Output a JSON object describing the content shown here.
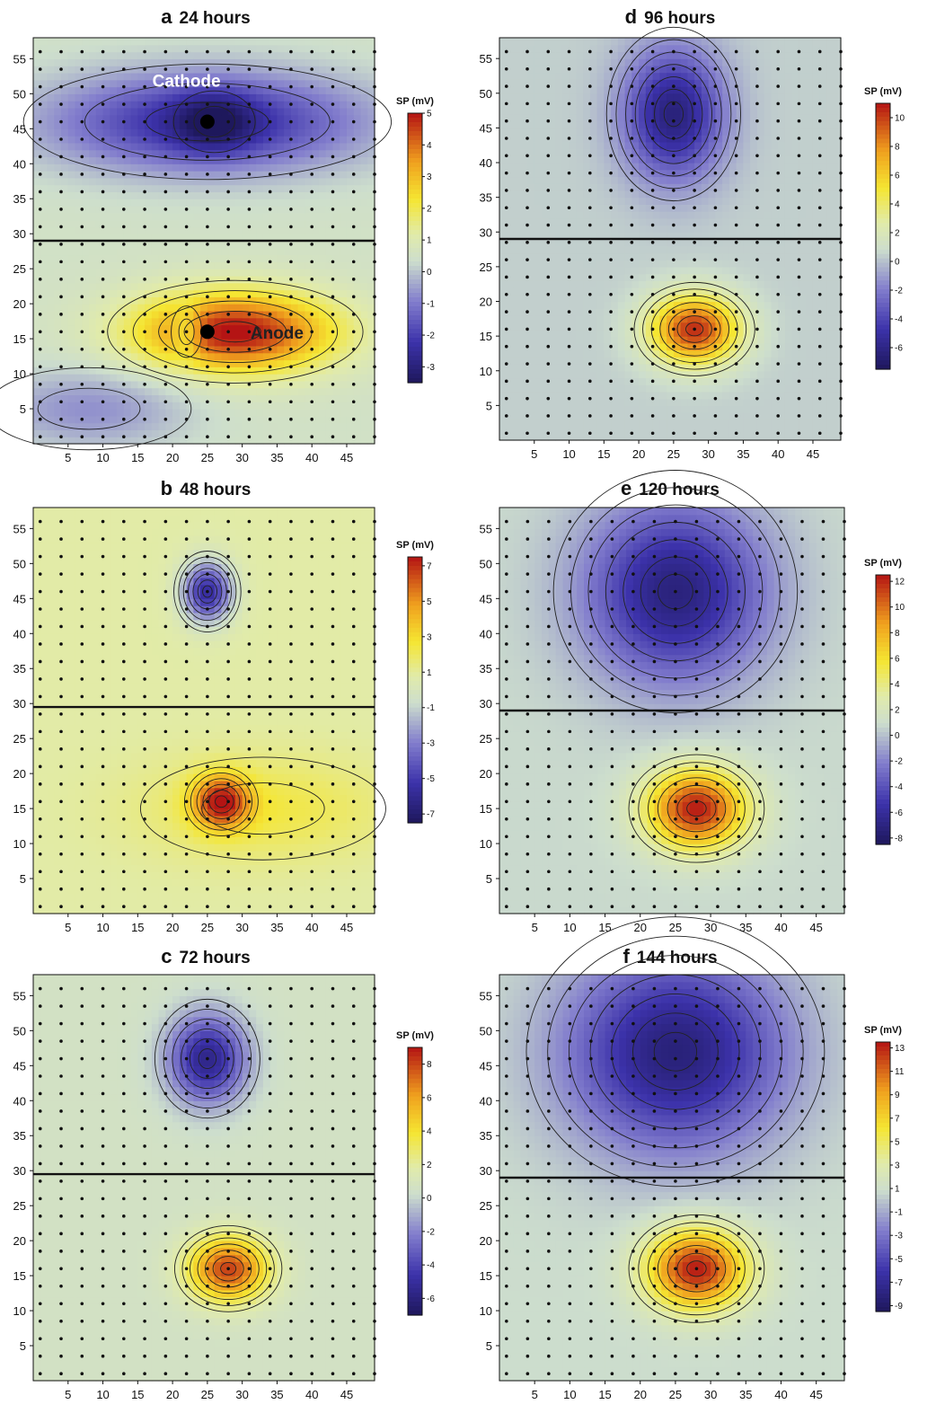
{
  "chart_data": [
    {
      "type": "heatmap",
      "letter": "a",
      "title": "24 hours",
      "colorbar_title": "SP (mV)",
      "colorbar_ticks": [
        5,
        4,
        3,
        2,
        1,
        0,
        -1,
        -2,
        -3
      ],
      "zlim": [
        -3.5,
        5
      ],
      "xlim": [
        0,
        49
      ],
      "ylim": [
        0,
        58
      ],
      "x_ticks": [
        5,
        10,
        15,
        20,
        25,
        30,
        35,
        40,
        45
      ],
      "y_ticks": [
        5,
        10,
        15,
        20,
        25,
        30,
        35,
        40,
        45,
        50,
        55
      ],
      "divider_y": 29,
      "background": 0.5,
      "anomalies": [
        {
          "x": 25,
          "y": 46,
          "amplitude": -3.0,
          "sx": 16,
          "sy": 5
        },
        {
          "x": 26,
          "y": 46,
          "amplitude": -1.5,
          "sx": 4,
          "sy": 3
        },
        {
          "x": 29,
          "y": 16,
          "amplitude": 4.6,
          "sx": 10,
          "sy": 4
        },
        {
          "x": 22,
          "y": 16,
          "amplitude": -1.5,
          "sx": 1.5,
          "sy": 2.5
        },
        {
          "x": 8,
          "y": 5,
          "amplitude": -1.2,
          "sx": 10,
          "sy": 4
        }
      ],
      "annotations": [
        {
          "text": "Cathode",
          "x": 22,
          "y": 51,
          "style": "light"
        },
        {
          "text": "Anode",
          "x": 35,
          "y": 15,
          "style": "dark"
        }
      ],
      "electrodes": [
        {
          "x": 25,
          "y": 46
        },
        {
          "x": 25,
          "y": 16
        }
      ]
    },
    {
      "type": "heatmap",
      "letter": "b",
      "title": "48 hours",
      "colorbar_title": "SP (mV)",
      "colorbar_ticks": [
        7,
        5,
        3,
        1,
        -1,
        -3,
        -5,
        -7
      ],
      "zlim": [
        -7.5,
        7.5
      ],
      "xlim": [
        0,
        49
      ],
      "ylim": [
        0,
        58
      ],
      "x_ticks": [
        5,
        10,
        15,
        20,
        25,
        30,
        35,
        40,
        45
      ],
      "y_ticks": [
        5,
        10,
        15,
        20,
        25,
        30,
        35,
        40,
        45,
        50,
        55
      ],
      "divider_y": 29.5,
      "background": 0.8,
      "anomalies": [
        {
          "x": 25,
          "y": 46,
          "amplitude": -6.5,
          "sx": 2.5,
          "sy": 3
        },
        {
          "x": 27,
          "y": 16,
          "amplitude": 6.0,
          "sx": 2.8,
          "sy": 2.6
        },
        {
          "x": 33,
          "y": 15,
          "amplitude": 1.6,
          "sx": 12,
          "sy": 5
        }
      ],
      "annotations": [],
      "electrodes": []
    },
    {
      "type": "heatmap",
      "letter": "c",
      "title": "72 hours",
      "colorbar_title": "SP (mV)",
      "colorbar_ticks": [
        8,
        6,
        4,
        2,
        0,
        -2,
        -4,
        -6
      ],
      "zlim": [
        -7,
        9
      ],
      "xlim": [
        0,
        49
      ],
      "ylim": [
        0,
        58
      ],
      "x_ticks": [
        5,
        10,
        15,
        20,
        25,
        30,
        35,
        40,
        45
      ],
      "y_ticks": [
        5,
        10,
        15,
        20,
        25,
        30,
        35,
        40,
        45,
        50,
        55
      ],
      "divider_y": 29.5,
      "background": 0.6,
      "anomalies": [
        {
          "x": 25,
          "y": 46,
          "amplitude": -6.2,
          "sx": 4,
          "sy": 4.5
        },
        {
          "x": 28,
          "y": 16,
          "amplitude": 7.5,
          "sx": 4,
          "sy": 3.2
        }
      ],
      "annotations": [],
      "electrodes": []
    },
    {
      "type": "heatmap",
      "letter": "d",
      "title": "96 hours",
      "colorbar_title": "SP (mV)",
      "colorbar_ticks": [
        10,
        8,
        6,
        4,
        2,
        0,
        -2,
        -4,
        -6
      ],
      "zlim": [
        -7.5,
        11
      ],
      "xlim": [
        0,
        49
      ],
      "ylim": [
        0,
        58
      ],
      "x_ticks": [
        5,
        10,
        15,
        20,
        25,
        30,
        35,
        40,
        45
      ],
      "y_ticks": [
        5,
        10,
        15,
        20,
        25,
        30,
        35,
        40,
        45,
        50,
        55
      ],
      "divider_y": 29,
      "background": 0.4,
      "anomalies": [
        {
          "x": 25,
          "y": 47,
          "amplitude": -6.8,
          "sx": 5,
          "sy": 6.5
        },
        {
          "x": 28,
          "y": 16,
          "amplitude": 10.0,
          "sx": 4.5,
          "sy": 3.5
        }
      ],
      "annotations": [],
      "electrodes": []
    },
    {
      "type": "heatmap",
      "letter": "e",
      "title": "120 hours",
      "colorbar_title": "SP (mV)",
      "colorbar_ticks": [
        12,
        10,
        8,
        6,
        4,
        2,
        0,
        -2,
        -4,
        -6,
        -8
      ],
      "zlim": [
        -8.5,
        12.5
      ],
      "xlim": [
        0,
        49
      ],
      "ylim": [
        0,
        58
      ],
      "x_ticks": [
        5,
        10,
        15,
        20,
        25,
        30,
        35,
        40,
        45
      ],
      "y_ticks": [
        5,
        10,
        15,
        20,
        25,
        30,
        35,
        40,
        45,
        50,
        55
      ],
      "divider_y": 29,
      "background": 0.8,
      "anomalies": [
        {
          "x": 25,
          "y": 46,
          "amplitude": -8.0,
          "sx": 9,
          "sy": 9
        },
        {
          "x": 28,
          "y": 15,
          "amplitude": 11.5,
          "sx": 5,
          "sy": 4
        }
      ],
      "annotations": [],
      "electrodes": []
    },
    {
      "type": "heatmap",
      "letter": "f",
      "title": "144 hours",
      "colorbar_title": "SP (mV)",
      "colorbar_ticks": [
        13,
        11,
        9,
        7,
        5,
        3,
        1,
        -1,
        -3,
        -5,
        -7,
        -9
      ],
      "zlim": [
        -9.5,
        13.5
      ],
      "xlim": [
        0,
        49
      ],
      "ylim": [
        0,
        58
      ],
      "x_ticks": [
        5,
        10,
        15,
        20,
        25,
        30,
        35,
        40,
        45
      ],
      "y_ticks": [
        5,
        10,
        15,
        20,
        25,
        30,
        35,
        40,
        45,
        50,
        55
      ],
      "divider_y": 29,
      "background": 0.8,
      "anomalies": [
        {
          "x": 25,
          "y": 47,
          "amplitude": -9.0,
          "sx": 11,
          "sy": 10
        },
        {
          "x": 28,
          "y": 16,
          "amplitude": 12.5,
          "sx": 5,
          "sy": 4
        }
      ],
      "annotations": [],
      "electrodes": []
    }
  ]
}
